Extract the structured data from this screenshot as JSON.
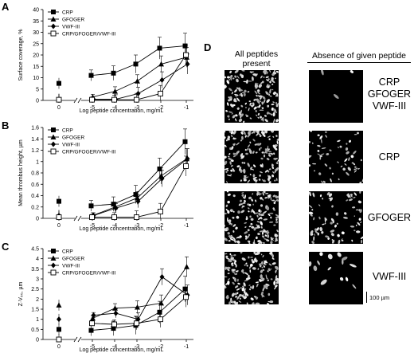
{
  "panels": {
    "A": "A",
    "B": "B",
    "C": "C",
    "D": "D"
  },
  "chart_data": [
    {
      "type": "line",
      "panel": "A",
      "ylabel": "Surface coverage, %",
      "xlabel": "Log peptide concentration, mg/mL",
      "xticks": [
        "0",
        "-5",
        "-4",
        "-3",
        "-2",
        "-1"
      ],
      "yticks": [
        "0",
        "5",
        "10",
        "15",
        "20",
        "25",
        "30",
        "35",
        "40"
      ],
      "ylim": [
        0,
        40
      ],
      "legend_position": "top-left",
      "series": [
        {
          "name": "CRP",
          "marker": "square-filled",
          "zero": 7.5,
          "values": [
            11,
            12,
            16,
            23,
            24
          ]
        },
        {
          "name": "GFOGER",
          "marker": "triangle-filled",
          "zero": 0.5,
          "values": [
            1.5,
            4,
            8.5,
            16,
            19
          ]
        },
        {
          "name": "VWF-III",
          "marker": "diamond-filled",
          "zero": 0.5,
          "values": [
            0.5,
            0.5,
            3,
            9,
            16
          ]
        },
        {
          "name": "CRP/GFOGER/VWF-III",
          "marker": "square-open",
          "zero": 0.3,
          "values": [
            0.3,
            0.3,
            0.3,
            3,
            20
          ]
        }
      ]
    },
    {
      "type": "line",
      "panel": "B",
      "ylabel": "Mean thrombus height, µm",
      "xlabel": "Log peptide concentration, mg/mL",
      "xticks": [
        "0",
        "-5",
        "-4",
        "-3",
        "-2",
        "-1"
      ],
      "yticks": [
        "0",
        "0.2",
        "0.4",
        "0.6",
        "0.8",
        "1",
        "1.2",
        "1.4",
        "1.6"
      ],
      "ylim": [
        0,
        1.6
      ],
      "legend_position": "top-left",
      "series": [
        {
          "name": "CRP",
          "marker": "square-filled",
          "zero": 0.3,
          "values": [
            0.22,
            0.25,
            0.42,
            0.87,
            1.35
          ]
        },
        {
          "name": "GFOGER",
          "marker": "triangle-filled",
          "zero": 0.05,
          "values": [
            0.05,
            0.2,
            0.36,
            0.75,
            1.05
          ]
        },
        {
          "name": "VWF-III",
          "marker": "diamond-filled",
          "zero": 0.05,
          "values": [
            0.05,
            0.18,
            0.3,
            0.7,
            1.05
          ]
        },
        {
          "name": "CRP/GFOGER/VWF-III",
          "marker": "square-open",
          "zero": 0.02,
          "values": [
            0.02,
            0.02,
            0.02,
            0.12,
            0.92
          ]
        }
      ]
    },
    {
      "type": "line",
      "panel": "C",
      "ylabel": "Z·V₅₀, µm",
      "xlabel": "Log peptide concentration, mg/mL",
      "xticks": [
        "0",
        "-5",
        "-4",
        "-3",
        "-2",
        "-1"
      ],
      "yticks": [
        "0",
        "0.5",
        "1",
        "1.5",
        "2",
        "2.5",
        "3",
        "3.5",
        "4",
        "4.5"
      ],
      "ylim": [
        0,
        4.5
      ],
      "legend_position": "top-left",
      "series": [
        {
          "name": "CRP",
          "marker": "square-filled",
          "zero": 0.5,
          "values": [
            0.45,
            0.55,
            0.7,
            1.35,
            2.5
          ]
        },
        {
          "name": "GFOGER",
          "marker": "triangle-filled",
          "zero": 1.7,
          "values": [
            1.05,
            1.55,
            1.6,
            1.8,
            3.6
          ]
        },
        {
          "name": "VWF-III",
          "marker": "diamond-filled",
          "zero": 1.0,
          "values": [
            1.2,
            1.3,
            1.0,
            3.1,
            2.2
          ]
        },
        {
          "name": "CRP/GFOGER/VWF-III",
          "marker": "square-open",
          "zero": 0.0,
          "values": [
            0.8,
            0.75,
            0.8,
            1.0,
            2.1
          ]
        }
      ]
    }
  ],
  "micrographs": {
    "col_present": "All peptides\npresent",
    "col_absent": "Absence of given peptide",
    "rows": [
      {
        "label": "CRP\nGFOGER\nVWF-III"
      },
      {
        "label": "CRP"
      },
      {
        "label": "GFOGER"
      },
      {
        "label": "VWF-III"
      }
    ],
    "scale_bar": "100 µm"
  }
}
